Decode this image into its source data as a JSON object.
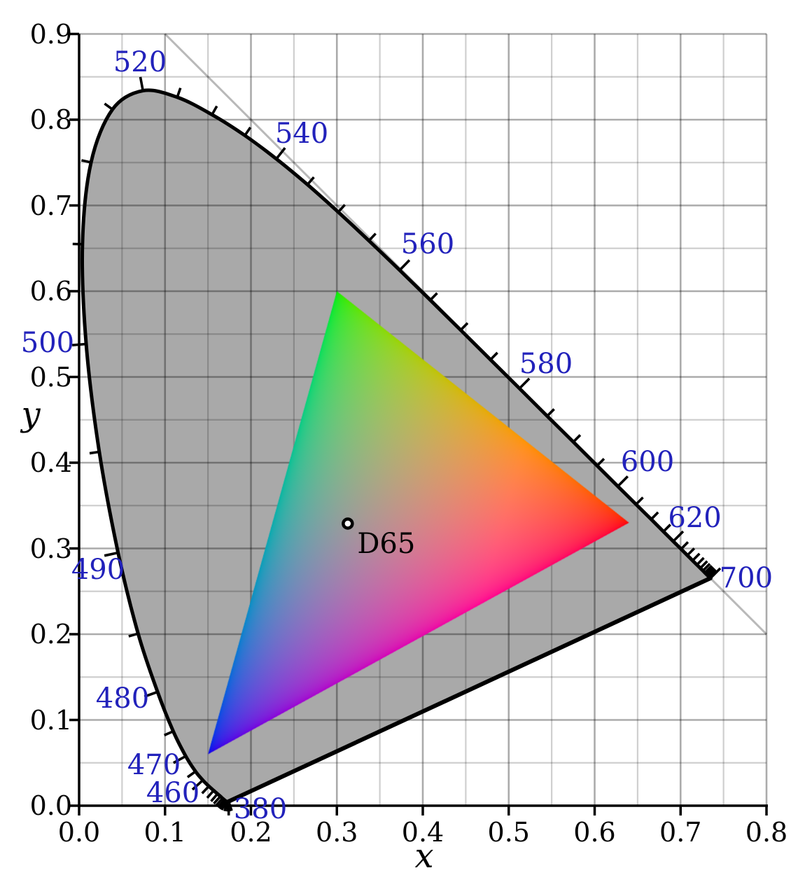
{
  "colors": {
    "background": "#ffffff",
    "locus_fill": "#a9a9a9",
    "locus_outline": "#000000",
    "grid_minor": "rgba(0,0,0,0.19)",
    "grid_major": "rgba(0,0,0,0.33)",
    "diagonal_line": "#b9b9b9",
    "wavelength_label": "#2222bb",
    "axis": "#000000",
    "d65_marker_fill": "#ffffff"
  },
  "chart_data": {
    "type": "area",
    "subtype": "cie-1931-xy-chromaticity-diagram-with-srgb-gamut",
    "title": "",
    "xlabel": "x",
    "ylabel": "y",
    "xlim": [
      0.0,
      0.8
    ],
    "ylim": [
      0.0,
      0.9
    ],
    "x_tick_labels": [
      "0.0",
      "0.1",
      "0.2",
      "0.3",
      "0.4",
      "0.5",
      "0.6",
      "0.7",
      "0.8"
    ],
    "y_tick_labels": [
      "0.0",
      "0.1",
      "0.2",
      "0.3",
      "0.4",
      "0.5",
      "0.6",
      "0.7",
      "0.8",
      "0.9"
    ],
    "grid_minor_step": 0.05,
    "grid_major_step": 0.1,
    "grid_on": true,
    "diagonal_line_endpoints": [
      [
        0.1,
        0.9
      ],
      [
        0.8,
        0.2
      ]
    ],
    "wavelength_tick_step_nm": 5,
    "spectral_locus": [
      [
        380,
        0.1741,
        0.005
      ],
      [
        385,
        0.174,
        0.005
      ],
      [
        390,
        0.1738,
        0.0049
      ],
      [
        395,
        0.1736,
        0.0049
      ],
      [
        400,
        0.1733,
        0.0048
      ],
      [
        405,
        0.173,
        0.0048
      ],
      [
        410,
        0.1726,
        0.0048
      ],
      [
        415,
        0.1721,
        0.0048
      ],
      [
        420,
        0.1714,
        0.0051
      ],
      [
        425,
        0.1703,
        0.0058
      ],
      [
        430,
        0.1689,
        0.0069
      ],
      [
        435,
        0.1669,
        0.0086
      ],
      [
        440,
        0.1644,
        0.0109
      ],
      [
        445,
        0.1611,
        0.0138
      ],
      [
        450,
        0.1566,
        0.0177
      ],
      [
        455,
        0.151,
        0.0227
      ],
      [
        460,
        0.144,
        0.0297
      ],
      [
        465,
        0.1355,
        0.0399
      ],
      [
        470,
        0.1241,
        0.0578
      ],
      [
        475,
        0.1096,
        0.0868
      ],
      [
        480,
        0.0913,
        0.1327
      ],
      [
        485,
        0.0687,
        0.2007
      ],
      [
        490,
        0.0454,
        0.295
      ],
      [
        495,
        0.0235,
        0.4127
      ],
      [
        500,
        0.0082,
        0.5384
      ],
      [
        505,
        0.0039,
        0.6548
      ],
      [
        510,
        0.0139,
        0.7502
      ],
      [
        515,
        0.0389,
        0.812
      ],
      [
        520,
        0.0743,
        0.8338
      ],
      [
        525,
        0.1142,
        0.8262
      ],
      [
        530,
        0.1547,
        0.8059
      ],
      [
        535,
        0.1929,
        0.7816
      ],
      [
        540,
        0.2296,
        0.7543
      ],
      [
        545,
        0.2658,
        0.7243
      ],
      [
        550,
        0.3016,
        0.6923
      ],
      [
        555,
        0.3373,
        0.6589
      ],
      [
        560,
        0.3731,
        0.6245
      ],
      [
        565,
        0.4087,
        0.5896
      ],
      [
        570,
        0.4441,
        0.5547
      ],
      [
        575,
        0.4788,
        0.5202
      ],
      [
        580,
        0.5125,
        0.4866
      ],
      [
        585,
        0.5448,
        0.4544
      ],
      [
        590,
        0.5752,
        0.4242
      ],
      [
        595,
        0.6029,
        0.3965
      ],
      [
        600,
        0.627,
        0.3725
      ],
      [
        605,
        0.6482,
        0.3514
      ],
      [
        610,
        0.6658,
        0.334
      ],
      [
        615,
        0.6801,
        0.3197
      ],
      [
        620,
        0.6915,
        0.3083
      ],
      [
        625,
        0.7006,
        0.2993
      ],
      [
        630,
        0.7079,
        0.292
      ],
      [
        635,
        0.714,
        0.2859
      ],
      [
        640,
        0.719,
        0.2809
      ],
      [
        645,
        0.723,
        0.277
      ],
      [
        650,
        0.726,
        0.274
      ],
      [
        655,
        0.7283,
        0.2717
      ],
      [
        660,
        0.73,
        0.27
      ],
      [
        665,
        0.7311,
        0.2689
      ],
      [
        670,
        0.732,
        0.268
      ],
      [
        675,
        0.7327,
        0.2673
      ],
      [
        680,
        0.7334,
        0.2666
      ],
      [
        685,
        0.734,
        0.266
      ],
      [
        690,
        0.7344,
        0.2656
      ],
      [
        695,
        0.7346,
        0.2654
      ],
      [
        700,
        0.7347,
        0.2653
      ]
    ],
    "wavelength_labels": [
      {
        "nm": "380",
        "x": 0.211,
        "y": -0.0041
      },
      {
        "nm": "460",
        "x": 0.1092,
        "y": 0.0147
      },
      {
        "nm": "470",
        "x": 0.0872,
        "y": 0.0473
      },
      {
        "nm": "480",
        "x": 0.0505,
        "y": 0.1249
      },
      {
        "nm": "490",
        "x": 0.022,
        "y": 0.2751
      },
      {
        "nm": "500",
        "x": -0.0367,
        "y": 0.5396
      },
      {
        "nm": "520",
        "x": 0.0709,
        "y": 0.867
      },
      {
        "nm": "540",
        "x": 0.2591,
        "y": 0.7837
      },
      {
        "nm": "560",
        "x": 0.4057,
        "y": 0.6547
      },
      {
        "nm": "580",
        "x": 0.5434,
        "y": 0.5151
      },
      {
        "nm": "600",
        "x": 0.6615,
        "y": 0.4008
      },
      {
        "nm": "620",
        "x": 0.7165,
        "y": 0.3355
      },
      {
        "nm": "700",
        "x": 0.7763,
        "y": 0.2653
      }
    ],
    "srgb_gamut_triangle": {
      "red": [
        0.64,
        0.33
      ],
      "green": [
        0.3,
        0.6
      ],
      "blue": [
        0.15,
        0.06
      ]
    },
    "white_point": {
      "label": "D65",
      "x": 0.3127,
      "y": 0.329
    }
  }
}
